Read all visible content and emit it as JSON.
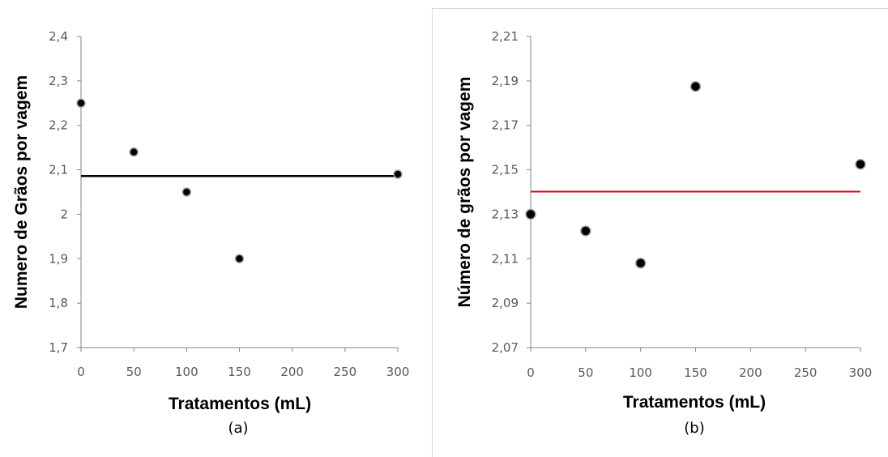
{
  "chart_data": [
    {
      "type": "scatter",
      "panel_label": "(a)",
      "xlabel": "Tratamentos (mL)",
      "ylabel": "Numero de Grãos por vagem",
      "xlim": [
        0,
        300
      ],
      "ylim": [
        1.7,
        2.4
      ],
      "xticks": [
        "0",
        "50",
        "100",
        "150",
        "200",
        "250",
        "300"
      ],
      "yticks": [
        "1,7",
        "1,8",
        "1,9",
        "2",
        "2,1",
        "2,2",
        "2,3",
        "2,4"
      ],
      "grid": false,
      "border": false,
      "points": [
        {
          "x": 0,
          "y": 2.25
        },
        {
          "x": 50,
          "y": 2.14
        },
        {
          "x": 100,
          "y": 2.05
        },
        {
          "x": 150,
          "y": 1.9
        },
        {
          "x": 300,
          "y": 2.09
        }
      ],
      "mean_line": {
        "y": 2.086,
        "color": "#000000"
      }
    },
    {
      "type": "scatter",
      "panel_label": "(b)",
      "xlabel": "Tratamentos (mL)",
      "ylabel": "Número de grãos por vagem",
      "xlim": [
        0,
        300
      ],
      "ylim": [
        2.07,
        2.21
      ],
      "xticks": [
        "0",
        "50",
        "100",
        "150",
        "200",
        "250",
        "300"
      ],
      "yticks": [
        "2,07",
        "2,09",
        "2,11",
        "2,13",
        "2,15",
        "2,17",
        "2,19",
        "2,21"
      ],
      "grid": false,
      "border": true,
      "points": [
        {
          "x": 0,
          "y": 2.13
        },
        {
          "x": 50,
          "y": 2.1225
        },
        {
          "x": 100,
          "y": 2.108
        },
        {
          "x": 150,
          "y": 2.1875
        },
        {
          "x": 300,
          "y": 2.1525
        }
      ],
      "mean_line": {
        "y": 2.1402,
        "color": "#e0000f"
      }
    }
  ]
}
